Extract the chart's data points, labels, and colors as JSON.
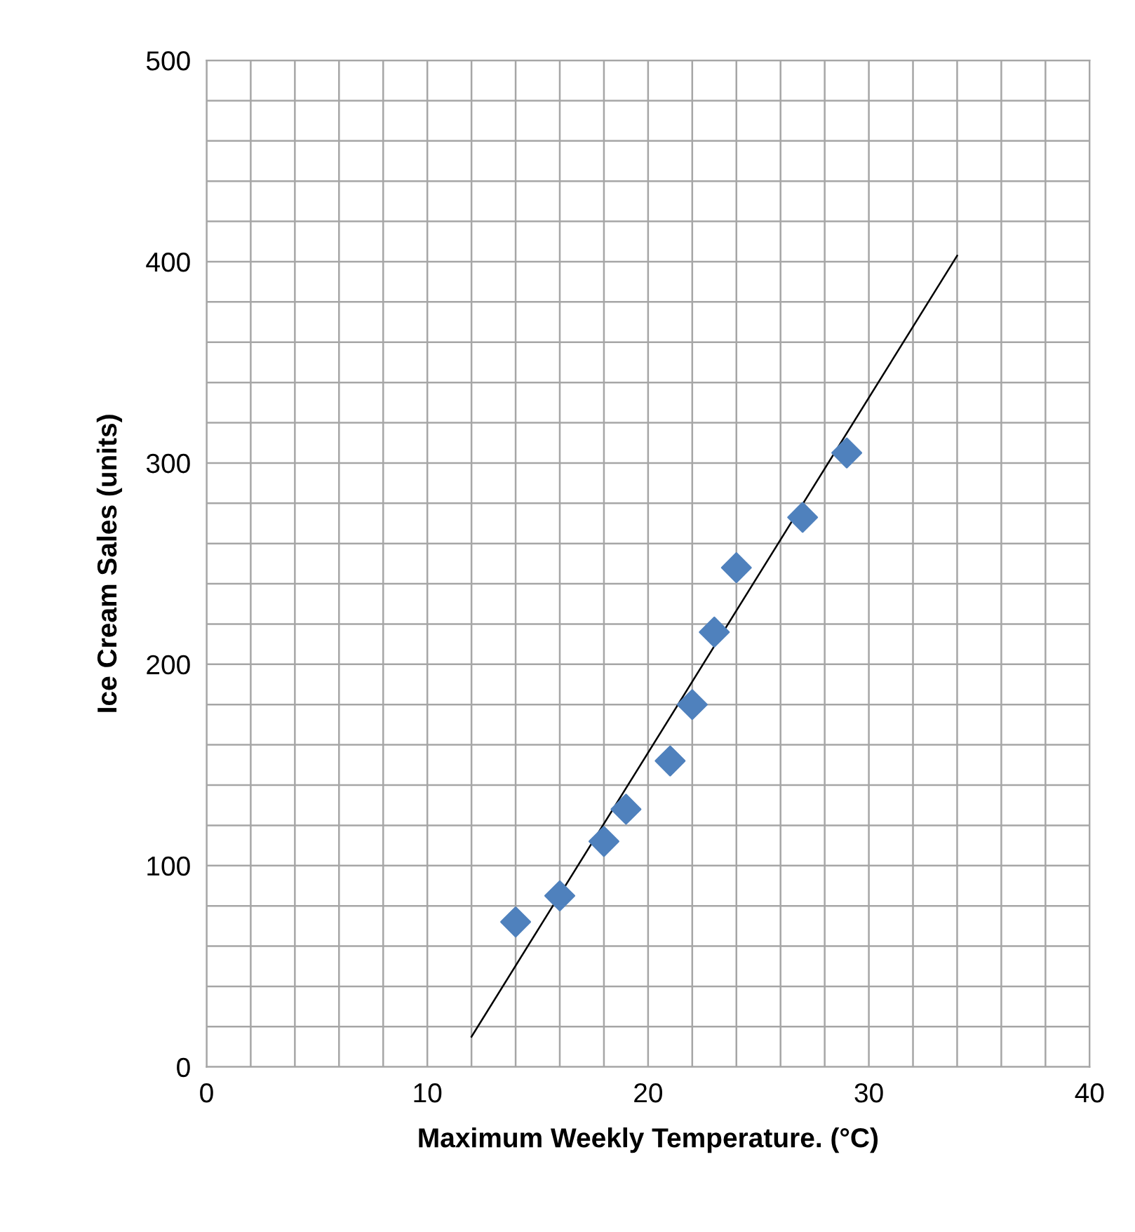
{
  "chart_data": {
    "type": "scatter",
    "xlabel": "Maximum Weekly Temperature. (°C)",
    "ylabel": "Ice Cream Sales (units)",
    "series": [
      {
        "color": "#4f81bd",
        "marker": "diamond",
        "x": [
          14,
          16,
          18,
          19,
          21,
          22,
          23,
          24,
          27,
          29
        ],
        "values": [
          72,
          85,
          112,
          128,
          152,
          180,
          216,
          248,
          273,
          305
        ]
      },
      {
        "type": "line",
        "color": "#000000",
        "marker": "none",
        "x": [
          12,
          34
        ],
        "values": [
          15,
          403
        ]
      }
    ],
    "xlim": [
      0,
      40
    ],
    "ylim": [
      0,
      500
    ],
    "xticks": [
      0,
      {
        "value": 2,
        "label": null
      },
      {
        "value": 4,
        "label": null
      },
      {
        "value": 6,
        "label": null
      },
      {
        "value": 8,
        "label": null
      },
      10,
      {
        "value": 12,
        "label": null
      },
      {
        "value": 14,
        "label": null
      },
      {
        "value": 16,
        "label": null
      },
      {
        "value": 18,
        "label": null
      },
      20,
      {
        "value": 22,
        "label": null
      },
      {
        "value": 24,
        "label": null
      },
      {
        "value": 26,
        "label": null
      },
      {
        "value": 28,
        "label": null
      },
      30,
      {
        "value": 32,
        "label": null
      },
      {
        "value": 34,
        "label": null
      },
      {
        "value": 36,
        "label": null
      },
      {
        "value": 38,
        "label": null
      },
      40
    ],
    "yticks": [
      0,
      {
        "value": 20,
        "label": null
      },
      {
        "value": 40,
        "label": null
      },
      {
        "value": 60,
        "label": null
      },
      {
        "value": 80,
        "label": null
      },
      100,
      {
        "value": 120,
        "label": null
      },
      {
        "value": 140,
        "label": null
      },
      {
        "value": 160,
        "label": null
      },
      {
        "value": 180,
        "label": null
      },
      200,
      {
        "value": 220,
        "label": null
      },
      {
        "value": 240,
        "label": null
      },
      {
        "value": 260,
        "label": null
      },
      {
        "value": 280,
        "label": null
      },
      300,
      {
        "value": 320,
        "label": null
      },
      {
        "value": 340,
        "label": null
      },
      {
        "value": 360,
        "label": null
      },
      {
        "value": 380,
        "label": null
      },
      400,
      {
        "value": 420,
        "label": null
      },
      {
        "value": 440,
        "label": null
      },
      {
        "value": 460,
        "label": null
      },
      {
        "value": 480,
        "label": null
      },
      500
    ],
    "grid": true
  }
}
